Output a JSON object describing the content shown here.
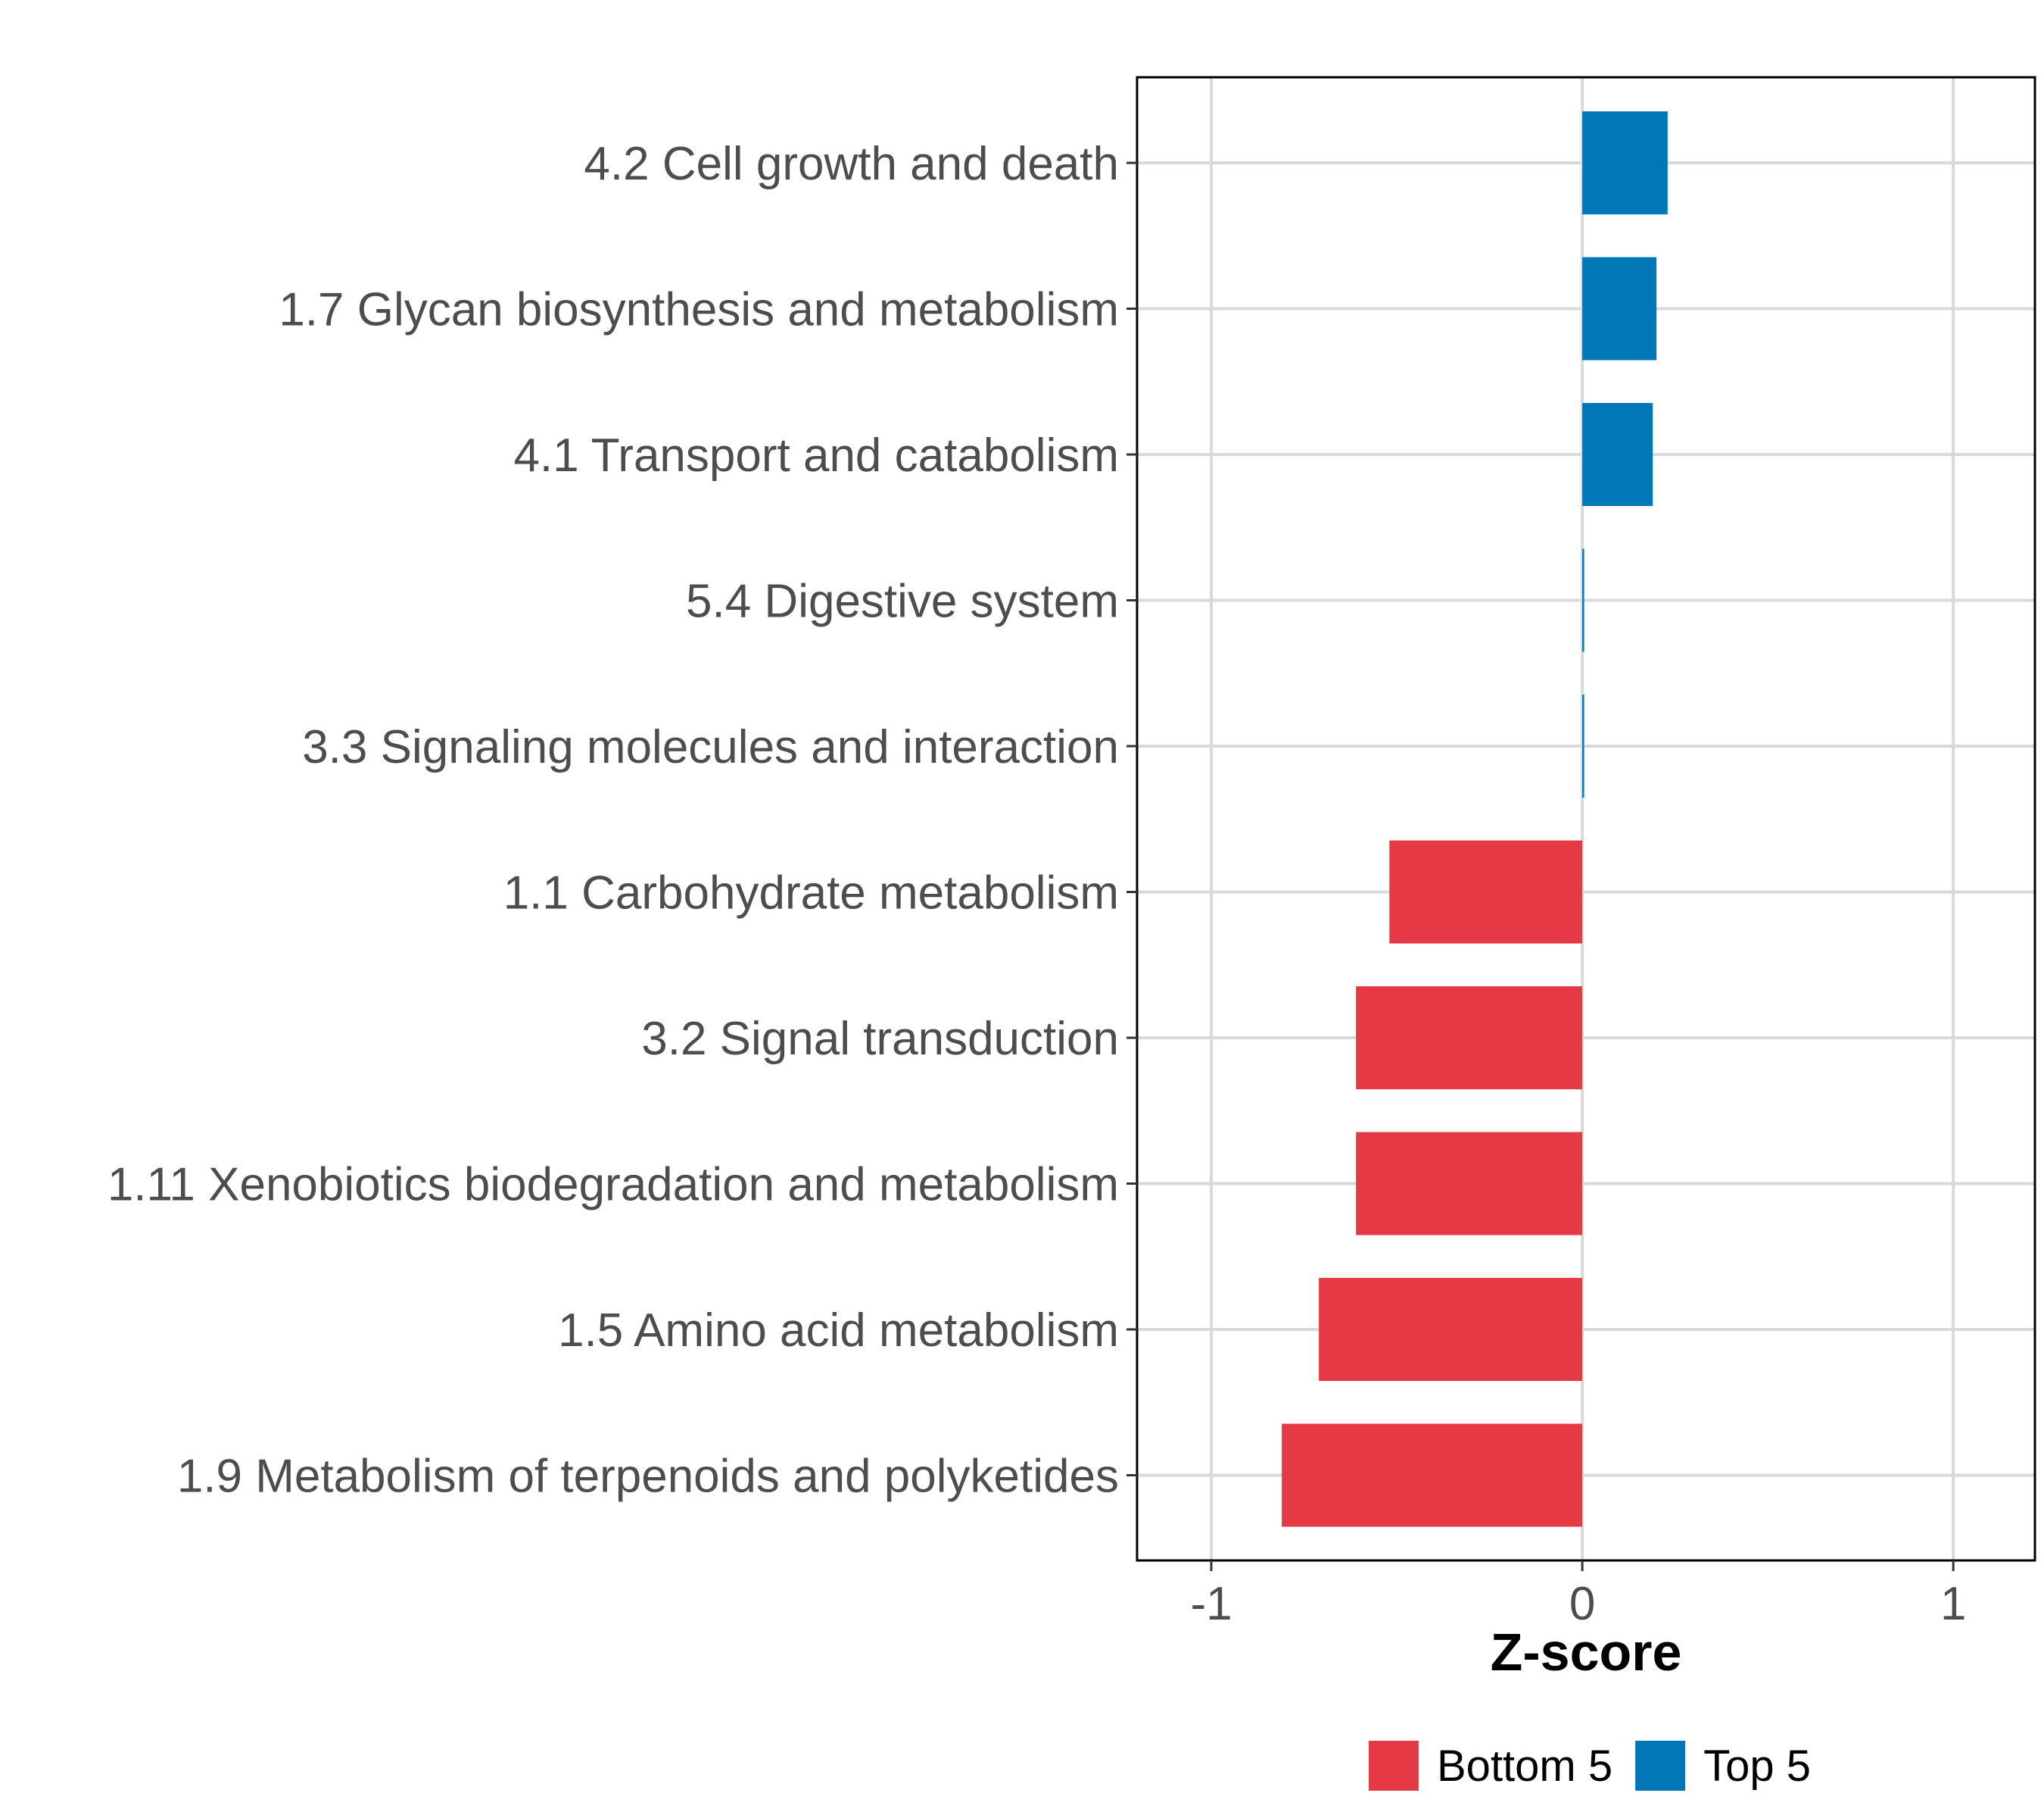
{
  "chart_data": {
    "type": "bar",
    "orientation": "horizontal",
    "title": "",
    "xlabel": "Z-score",
    "ylabel": "",
    "xlim": [
      -1.2,
      1.22
    ],
    "xticks": [
      -1,
      0,
      1
    ],
    "xtick_labels": [
      "-1",
      "0",
      "1"
    ],
    "grid": true,
    "legend_position": "bottom",
    "categories": [
      "4.2 Cell growth and death",
      "1.7 Glycan biosynthesis and metabolism",
      "4.1 Transport and catabolism",
      "5.4 Digestive system",
      "3.3 Signaling molecules and interaction",
      "1.1 Carbohydrate metabolism",
      "3.2 Signal transduction",
      "1.11 Xenobiotics biodegradation and metabolism",
      "1.5 Amino acid metabolism",
      "1.9 Metabolism of terpenoids and polyketides"
    ],
    "values": [
      0.23,
      0.2,
      0.19,
      0.005,
      0.005,
      -0.52,
      -0.61,
      -0.61,
      -0.71,
      -0.81
    ],
    "groups": [
      "Top 5",
      "Top 5",
      "Top 5",
      "Top 5",
      "Top 5",
      "Bottom 5",
      "Bottom 5",
      "Bottom 5",
      "Bottom 5",
      "Bottom 5"
    ],
    "legend": [
      {
        "name": "Bottom 5",
        "color": "#E63946"
      },
      {
        "name": "Top 5",
        "color": "#0077B6"
      }
    ]
  }
}
